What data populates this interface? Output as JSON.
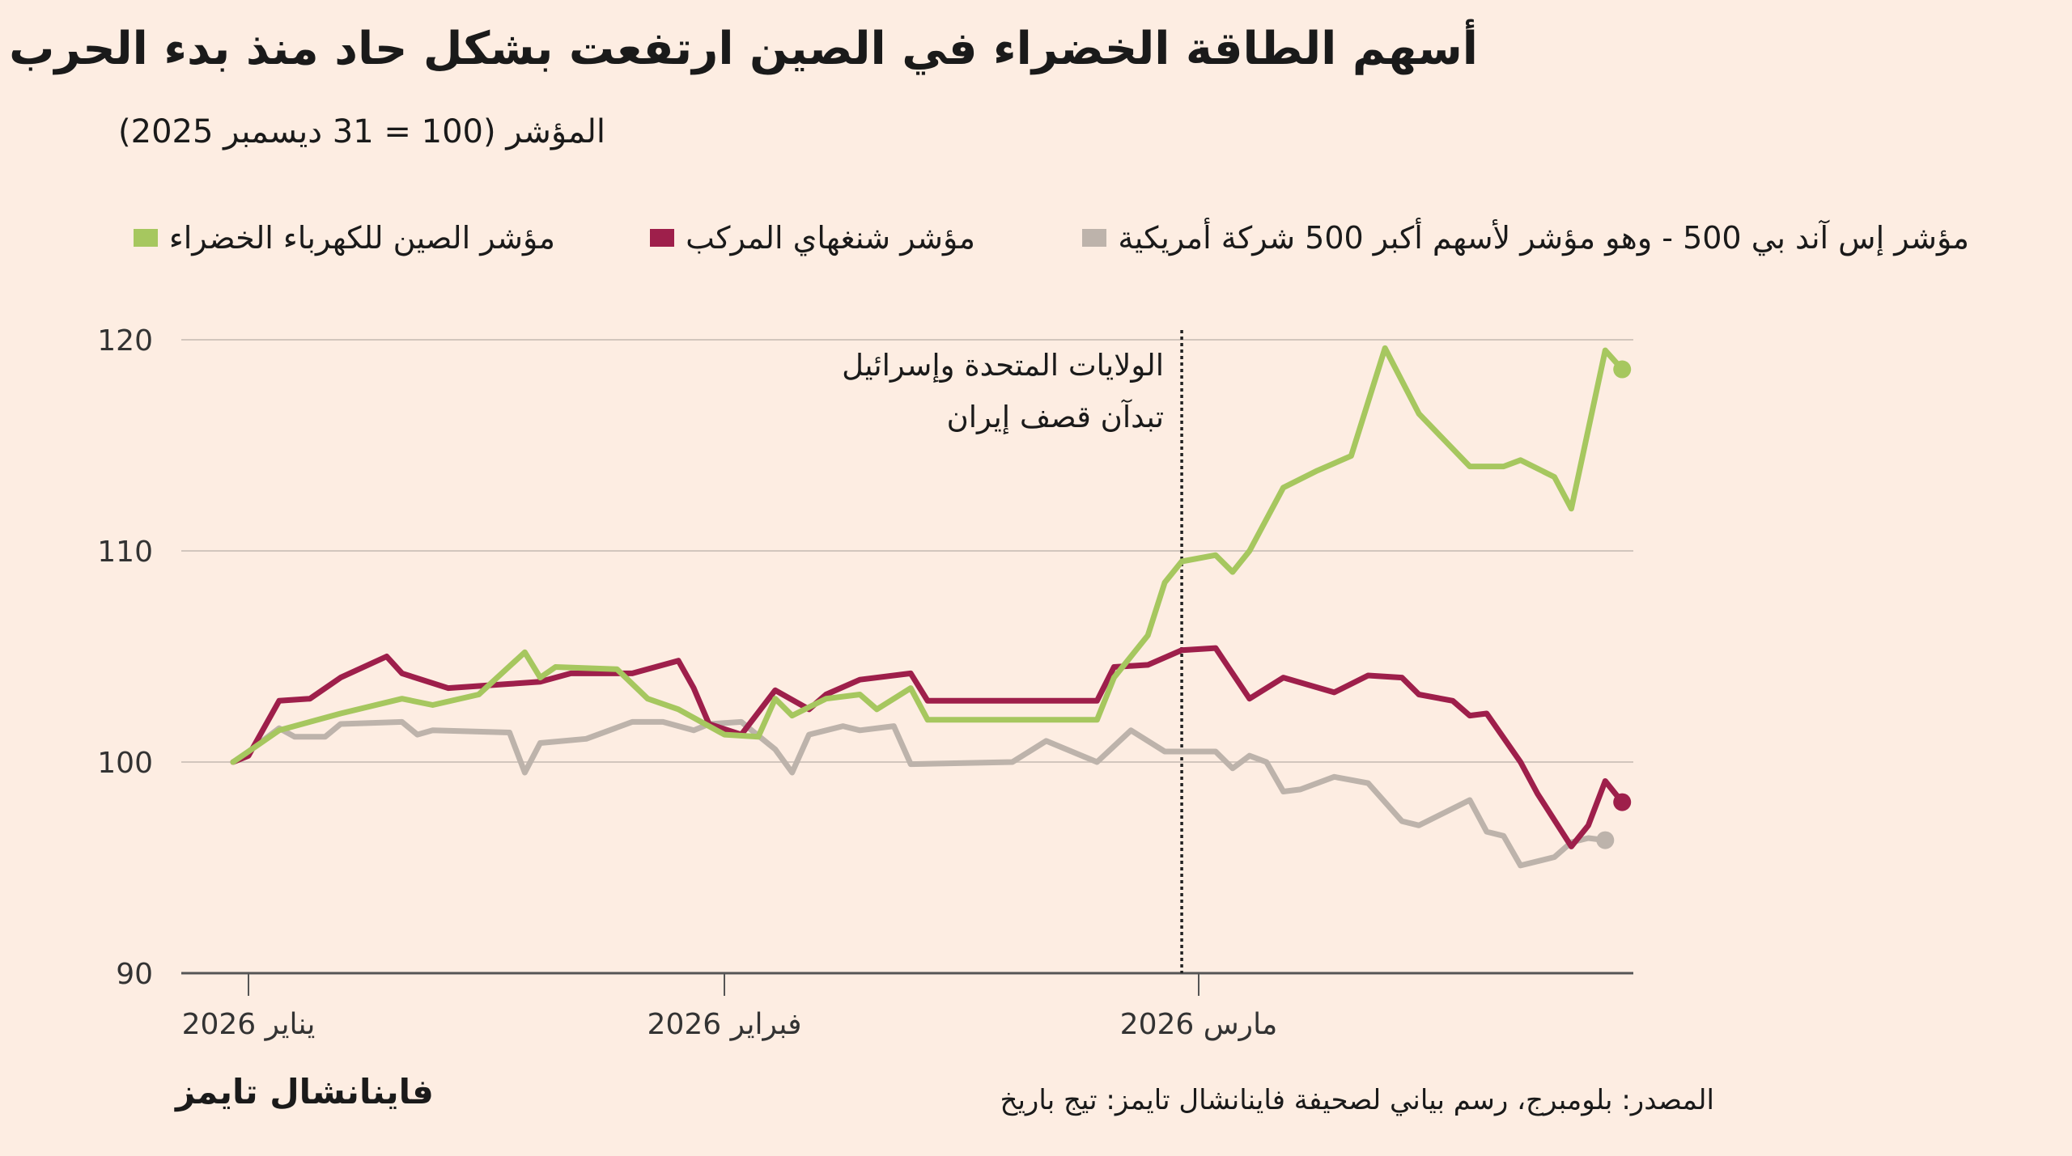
{
  "title": "أسهم الطاقة الخضراء في الصين ارتفعت بشكل حاد منذ بدء الحرب",
  "subtitle": "المؤشر (100 = 31 ديسمبر 2025)",
  "annotation": {
    "line1": "الولايات المتحدة وإسرائيل",
    "line2": "تبدآن قصف إيران",
    "date": "2026-02-28"
  },
  "footer": {
    "logo": "فاينانشال تايمز",
    "source": "المصدر: بلومبرج، رسم بياني لصحيفة فاينانشال تايمز: تيج باريخ"
  },
  "chart_data": {
    "type": "line",
    "title": "أسهم الطاقة الخضراء في الصين ارتفعت بشكل حاد منذ بدء الحرب",
    "subtitle": "المؤشر (100 = 31 ديسمبر 2025)",
    "ylim": [
      90,
      120
    ],
    "yticks": [
      90,
      100,
      110,
      120
    ],
    "grid": true,
    "legend": "top",
    "xticks": [
      {
        "date": "2026-01-01",
        "label": "يناير 2026"
      },
      {
        "date": "2026-02-01",
        "label": "فبراير 2026"
      },
      {
        "date": "2026-03-01",
        "label": "مارس 2026"
      }
    ],
    "series": [
      {
        "name": "مؤشر إس آند بي 500 - وهو مؤشر لأسهم أكبر 500 شركة أمريكية",
        "color": "#bdb3ab",
        "points": [
          [
            "2025-12-31",
            100
          ],
          [
            "2026-01-01",
            100.5
          ],
          [
            "2026-01-03",
            101.6
          ],
          [
            "2026-01-04",
            101.2
          ],
          [
            "2026-01-06",
            101.2
          ],
          [
            "2026-01-07",
            101.8
          ],
          [
            "2026-01-11",
            101.9
          ],
          [
            "2026-01-12",
            101.3
          ],
          [
            "2026-01-13",
            101.5
          ],
          [
            "2026-01-18",
            101.4
          ],
          [
            "2026-01-19",
            99.5
          ],
          [
            "2026-01-20",
            100.9
          ],
          [
            "2026-01-23",
            101.1
          ],
          [
            "2026-01-26",
            101.9
          ],
          [
            "2026-01-28",
            101.9
          ],
          [
            "2026-01-30",
            101.5
          ],
          [
            "2026-01-31",
            101.8
          ],
          [
            "2026-02-02",
            101.9
          ],
          [
            "2026-02-04",
            100.6
          ],
          [
            "2026-02-05",
            99.5
          ],
          [
            "2026-02-06",
            101.3
          ],
          [
            "2026-02-08",
            101.7
          ],
          [
            "2026-02-09",
            101.5
          ],
          [
            "2026-02-11",
            101.7
          ],
          [
            "2026-02-12",
            99.9
          ],
          [
            "2026-02-18",
            100
          ],
          [
            "2026-02-19",
            100.5
          ],
          [
            "2026-02-20",
            101
          ],
          [
            "2026-02-23",
            100
          ],
          [
            "2026-02-25",
            101.5
          ],
          [
            "2026-02-27",
            100.5
          ],
          [
            "2026-03-02",
            100.5
          ],
          [
            "2026-03-03",
            99.7
          ],
          [
            "2026-03-04",
            100.3
          ],
          [
            "2026-03-05",
            100
          ],
          [
            "2026-03-06",
            98.6
          ],
          [
            "2026-03-07",
            98.7
          ],
          [
            "2026-03-09",
            99.3
          ],
          [
            "2026-03-11",
            99
          ],
          [
            "2026-03-13",
            97.2
          ],
          [
            "2026-03-14",
            97
          ],
          [
            "2026-03-17",
            98.2
          ],
          [
            "2026-03-18",
            96.7
          ],
          [
            "2026-03-19",
            96.5
          ],
          [
            "2026-03-20",
            95.1
          ],
          [
            "2026-03-22",
            95.5
          ],
          [
            "2026-03-23",
            96.2
          ],
          [
            "2026-03-24",
            96.4
          ],
          [
            "2026-03-25",
            96.3
          ]
        ]
      },
      {
        "name": "مؤشر شنغهاي المركب",
        "color": "#9e1f4b",
        "points": [
          [
            "2025-12-31",
            100
          ],
          [
            "2026-01-01",
            100.3
          ],
          [
            "2026-01-03",
            102.9
          ],
          [
            "2026-01-05",
            103
          ],
          [
            "2026-01-07",
            104
          ],
          [
            "2026-01-10",
            105
          ],
          [
            "2026-01-11",
            104.2
          ],
          [
            "2026-01-14",
            103.5
          ],
          [
            "2026-01-18",
            103.7
          ],
          [
            "2026-01-20",
            103.8
          ],
          [
            "2026-01-22",
            104.2
          ],
          [
            "2026-01-26",
            104.2
          ],
          [
            "2026-01-29",
            104.8
          ],
          [
            "2026-01-30",
            103.5
          ],
          [
            "2026-01-31",
            101.8
          ],
          [
            "2026-02-02",
            101.3
          ],
          [
            "2026-02-04",
            103.4
          ],
          [
            "2026-02-06",
            102.5
          ],
          [
            "2026-02-07",
            103.2
          ],
          [
            "2026-02-09",
            103.9
          ],
          [
            "2026-02-12",
            104.2
          ],
          [
            "2026-02-13",
            102.9
          ],
          [
            "2026-02-23",
            102.9
          ],
          [
            "2026-02-24",
            104.5
          ],
          [
            "2026-02-26",
            104.6
          ],
          [
            "2026-02-28",
            105.3
          ],
          [
            "2026-03-02",
            105.4
          ],
          [
            "2026-03-04",
            103
          ],
          [
            "2026-03-06",
            104
          ],
          [
            "2026-03-09",
            103.3
          ],
          [
            "2026-03-11",
            104.1
          ],
          [
            "2026-03-13",
            104
          ],
          [
            "2026-03-14",
            103.2
          ],
          [
            "2026-03-16",
            102.9
          ],
          [
            "2026-03-17",
            102.2
          ],
          [
            "2026-03-18",
            102.3
          ],
          [
            "2026-03-20",
            100
          ],
          [
            "2026-03-21",
            98.5
          ],
          [
            "2026-03-23",
            96
          ],
          [
            "2026-03-24",
            97
          ],
          [
            "2026-03-25",
            99.1
          ],
          [
            "2026-03-26",
            98.1
          ]
        ]
      },
      {
        "name": "مؤشر الصين للكهرباء الخضراء",
        "color": "#a6c75f",
        "points": [
          [
            "2025-12-31",
            100
          ],
          [
            "2026-01-01",
            100.5
          ],
          [
            "2026-01-03",
            101.5
          ],
          [
            "2026-01-07",
            102.3
          ],
          [
            "2026-01-11",
            103
          ],
          [
            "2026-01-13",
            102.7
          ],
          [
            "2026-01-16",
            103.2
          ],
          [
            "2026-01-19",
            105.2
          ],
          [
            "2026-01-20",
            104
          ],
          [
            "2026-01-21",
            104.5
          ],
          [
            "2026-01-25",
            104.4
          ],
          [
            "2026-01-27",
            103
          ],
          [
            "2026-01-29",
            102.5
          ],
          [
            "2026-02-01",
            101.3
          ],
          [
            "2026-02-03",
            101.2
          ],
          [
            "2026-02-04",
            103
          ],
          [
            "2026-02-05",
            102.2
          ],
          [
            "2026-02-07",
            103
          ],
          [
            "2026-02-09",
            103.2
          ],
          [
            "2026-02-10",
            102.5
          ],
          [
            "2026-02-12",
            103.5
          ],
          [
            "2026-02-13",
            102
          ],
          [
            "2026-02-23",
            102
          ],
          [
            "2026-02-24",
            104
          ],
          [
            "2026-02-26",
            106
          ],
          [
            "2026-02-27",
            108.5
          ],
          [
            "2026-02-28",
            109.5
          ],
          [
            "2026-03-02",
            109.8
          ],
          [
            "2026-03-03",
            109
          ],
          [
            "2026-03-04",
            110
          ],
          [
            "2026-03-06",
            113
          ],
          [
            "2026-03-08",
            113.8
          ],
          [
            "2026-03-10",
            114.5
          ],
          [
            "2026-03-12",
            119.6
          ],
          [
            "2026-03-14",
            116.5
          ],
          [
            "2026-03-17",
            114
          ],
          [
            "2026-03-19",
            114
          ],
          [
            "2026-03-20",
            114.3
          ],
          [
            "2026-03-22",
            113.5
          ],
          [
            "2026-03-23",
            112
          ],
          [
            "2026-03-25",
            119.5
          ],
          [
            "2026-03-26",
            118.6
          ]
        ]
      }
    ]
  }
}
